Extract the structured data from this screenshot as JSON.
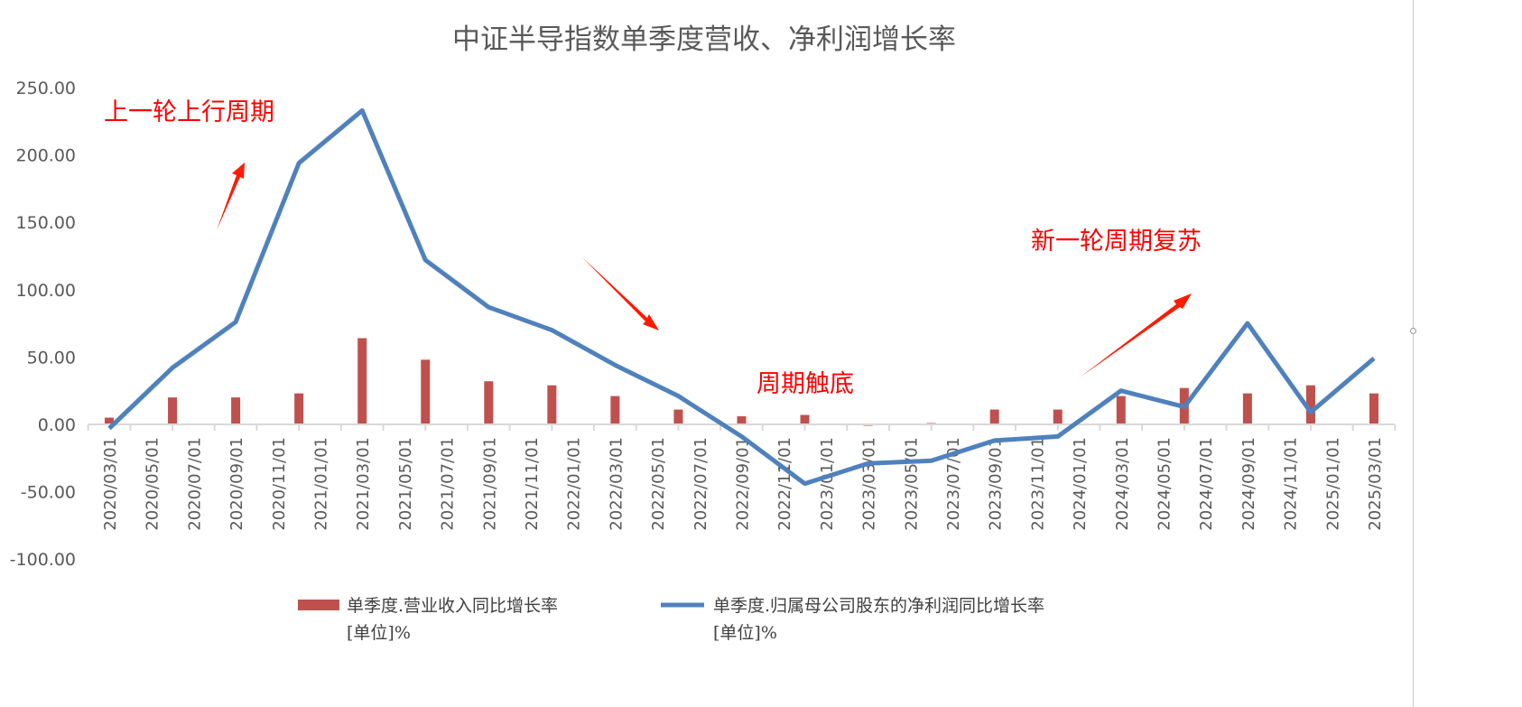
{
  "chart_data": {
    "type": "bar+line",
    "title": "中证半导指数单季度营收、净利润增长率",
    "xlabel": "",
    "ylabel": "",
    "ylim": [
      -100,
      250
    ],
    "yticks": [
      "250.00",
      "200.00",
      "150.00",
      "100.00",
      "50.00",
      "0.00",
      "-50.00",
      "-100.00"
    ],
    "ytick_values": [
      250,
      200,
      150,
      100,
      50,
      0,
      -50,
      -100
    ],
    "xtick_labels": [
      "2020/03/01",
      "2020/05/01",
      "2020/07/01",
      "2020/09/01",
      "2020/11/01",
      "2021/01/01",
      "2021/03/01",
      "2021/05/01",
      "2021/07/01",
      "2021/09/01",
      "2021/11/01",
      "2022/01/01",
      "2022/03/01",
      "2022/05/01",
      "2022/07/01",
      "2022/09/01",
      "2022/11/01",
      "2023/01/01",
      "2023/03/01",
      "2023/05/01",
      "2023/07/01",
      "2023/09/01",
      "2023/11/01",
      "2024/01/01",
      "2024/03/01",
      "2024/05/01",
      "2024/07/01",
      "2024/09/01",
      "2024/11/01",
      "2025/01/01",
      "2025/03/01"
    ],
    "x": [
      "2020/03",
      "2020/06",
      "2020/09",
      "2020/12",
      "2021/03",
      "2021/06",
      "2021/09",
      "2021/12",
      "2022/03",
      "2022/06",
      "2022/09",
      "2022/12",
      "2023/03",
      "2023/06",
      "2023/09",
      "2023/12",
      "2024/03",
      "2024/06",
      "2024/09",
      "2024/12",
      "2025/03"
    ],
    "series": [
      {
        "name": "单季度.营业收入同比增长率",
        "name_line2": "[单位]%",
        "type": "bar",
        "color": "#c0504d",
        "values": [
          5,
          20,
          20,
          23,
          64,
          48,
          32,
          29,
          21,
          11,
          6,
          7,
          -1,
          1,
          11,
          11,
          21,
          27,
          23,
          29,
          23
        ]
      },
      {
        "name": "单季度.归属母公司股东的净利润同比增长率",
        "name_line2": "[单位]%",
        "type": "line",
        "color": "#4f81bd",
        "values": [
          -3,
          42,
          76,
          194,
          233,
          122,
          87,
          70,
          44,
          21,
          -9,
          -44,
          -29,
          -27,
          -12,
          -9,
          25,
          13,
          75,
          9,
          49
        ]
      }
    ],
    "grid": false,
    "legend": "bottom",
    "annotations": [
      {
        "text": "上一轮上行周期",
        "color": "#ff0000"
      },
      {
        "text": "周期触底",
        "color": "#ff0000"
      },
      {
        "text": "新一轮周期复苏",
        "color": "#ff0000"
      }
    ]
  }
}
